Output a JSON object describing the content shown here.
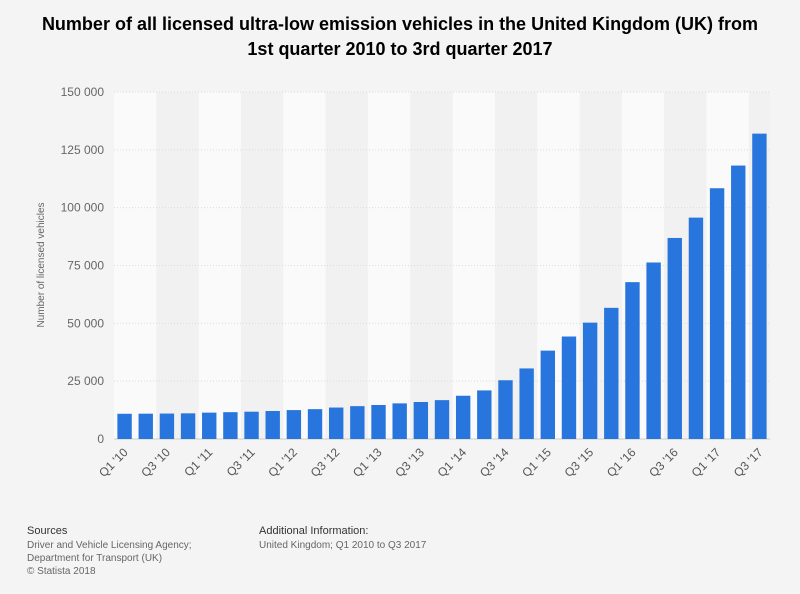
{
  "chart_data": {
    "type": "bar",
    "title": "Number of all licensed ultra-low emission vehicles in the United Kingdom (UK) from 1st quarter 2010 to 3rd quarter 2017",
    "ylabel": "Number of licensed vehicles",
    "xlabel": "",
    "ylim": [
      0,
      150000
    ],
    "yticks": [
      0,
      25000,
      50000,
      75000,
      100000,
      125000,
      150000
    ],
    "ytick_labels": [
      "0",
      "25 000",
      "50 000",
      "75 000",
      "100 000",
      "125 000",
      "150 000"
    ],
    "categories": [
      "Q1 '10",
      "Q2 '10",
      "Q3 '10",
      "Q4 '10",
      "Q1 '11",
      "Q2 '11",
      "Q3 '11",
      "Q4 '11",
      "Q1 '12",
      "Q2 '12",
      "Q3 '12",
      "Q4 '12",
      "Q1 '13",
      "Q2 '13",
      "Q3 '13",
      "Q4 '13",
      "Q1 '14",
      "Q2 '14",
      "Q3 '14",
      "Q4 '14",
      "Q1 '15",
      "Q2 '15",
      "Q3 '15",
      "Q4 '15",
      "Q1 '16",
      "Q2 '16",
      "Q3 '16",
      "Q4 '16",
      "Q1 '17",
      "Q2 '17",
      "Q3 '17"
    ],
    "shown_tick_labels": [
      "Q1 '10",
      "Q3 '10",
      "Q1 '11",
      "Q3 '11",
      "Q1 '12",
      "Q3 '12",
      "Q1 '13",
      "Q3 '13",
      "Q1 '14",
      "Q3 '14",
      "Q1 '15",
      "Q3 '15",
      "Q1 '16",
      "Q3 '16",
      "Q1 '17",
      "Q3 '17"
    ],
    "values": [
      10900,
      10950,
      11000,
      11100,
      11400,
      11600,
      11800,
      12100,
      12500,
      12900,
      13600,
      14200,
      14700,
      15400,
      16000,
      16800,
      18700,
      21000,
      25400,
      30500,
      38200,
      44300,
      50300,
      56700,
      67800,
      76300,
      86900,
      95700,
      108400,
      118200,
      132000
    ],
    "bar_color": "#2876dd",
    "grid": true,
    "legend": "none"
  },
  "footer": {
    "sources_heading": "Sources",
    "sources_line1": "Driver and Vehicle Licensing Agency;",
    "sources_line2": "Department for Transport (UK)",
    "copyright": "© Statista 2018",
    "additional_heading": "Additional Information:",
    "additional_text": "United Kingdom; Q1 2010 to Q3 2017"
  }
}
